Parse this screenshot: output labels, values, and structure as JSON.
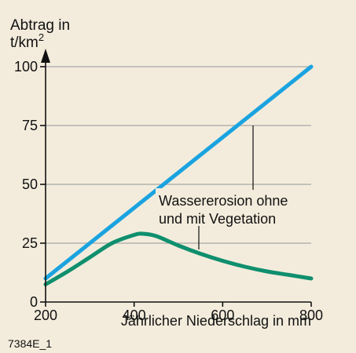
{
  "chart_data": {
    "type": "line",
    "ylabel_line1": "Abtrag in",
    "ylabel_line2": "t/km",
    "ylabel_sup": "2",
    "xlabel": "Jährlicher Niederschlag in mm",
    "code": "7384E_1",
    "xlim": [
      200,
      800
    ],
    "ylim": [
      0,
      100
    ],
    "x_ticks": [
      200,
      400,
      600,
      800
    ],
    "y_ticks": [
      0,
      25,
      50,
      75,
      100
    ],
    "grid": "horizontal",
    "annotation_line1": "Wassererosion ohne",
    "annotation_line2": "und mit Vegetation",
    "series": [
      {
        "color": "#1aa3e0",
        "x": [
          200,
          800
        ],
        "y": [
          10,
          100
        ]
      },
      {
        "color": "#0f8f6e",
        "x": [
          200,
          250,
          300,
          350,
          400,
          420,
          450,
          500,
          550,
          600,
          650,
          700,
          750,
          800
        ],
        "y": [
          7.5,
          13,
          19,
          25,
          28.5,
          29,
          28,
          24,
          20.5,
          17.5,
          15,
          13,
          11.5,
          10
        ]
      }
    ]
  }
}
